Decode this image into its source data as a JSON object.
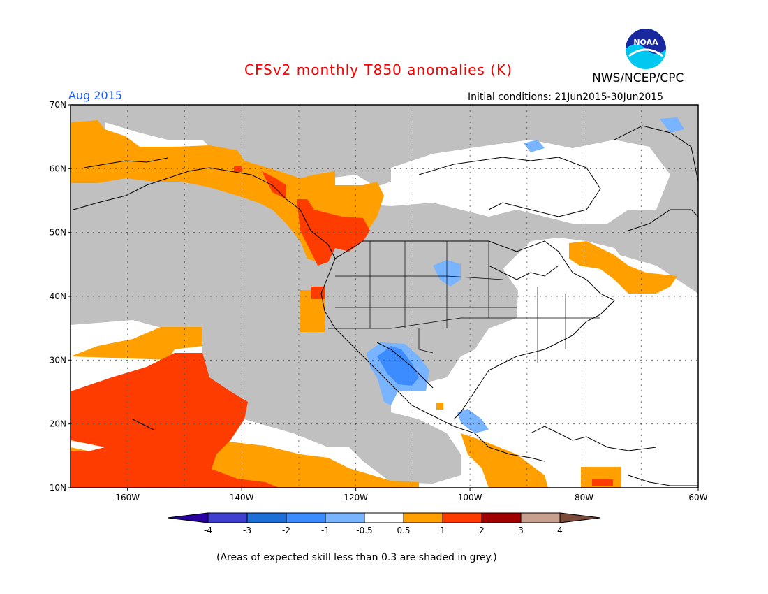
{
  "header": {
    "title": "CFSv2 monthly T850 anomalies (K)",
    "org": "NWS/NCEP/CPC",
    "month": "Aug 2015",
    "initial_conditions": "Initial conditions: 21Jun2015-30Jun2015",
    "logo_text": "NOAA"
  },
  "map": {
    "lat_labels": [
      "70N",
      "60N",
      "50N",
      "40N",
      "30N",
      "20N",
      "10N"
    ],
    "lon_labels": [
      "160W",
      "140W",
      "120W",
      "100W",
      "80W",
      "60W"
    ],
    "lon_range": [
      -170,
      -60
    ],
    "lat_range": [
      10,
      70
    ],
    "colors": {
      "grey_low_skill": "#c0c0c0",
      "land_ocean_neutral": "#ffffff",
      "warm_0_5_1": "#ffa000",
      "warm_1_2": "#ff3c00",
      "cool_m1_m0_5": "#78b4ff",
      "cool_m2_m1": "#3c8cff"
    }
  },
  "colorbar": {
    "labels": [
      "-4",
      "-3",
      "-2",
      "-1",
      "-0.5",
      "0.5",
      "1",
      "2",
      "3",
      "4"
    ],
    "colors": [
      "#2800a0",
      "#4040d0",
      "#1e6ed8",
      "#3c8cff",
      "#78b4ff",
      "#ffffff",
      "#ffa000",
      "#ff3c00",
      "#a00000",
      "#c8a090",
      "#7a4a3a"
    ]
  },
  "footnote": "(Areas of expected skill less than 0.3 are shaded in grey.)"
}
